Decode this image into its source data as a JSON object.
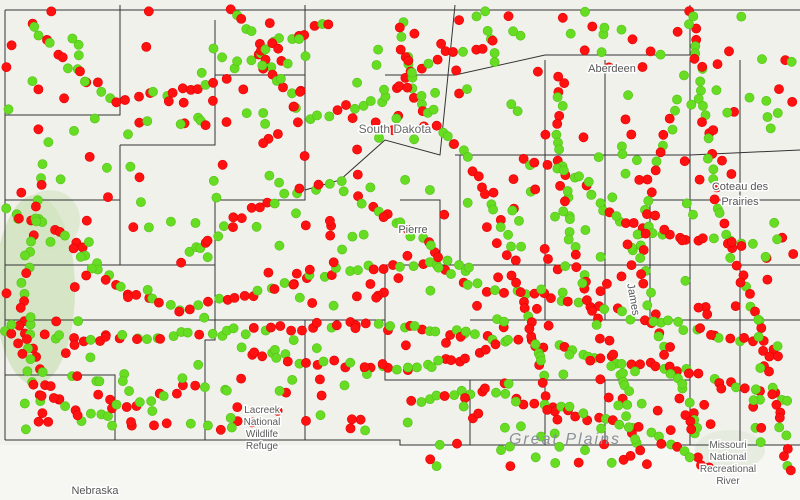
{
  "map": {
    "state_label": "South Dakota",
    "cities": [
      "Aberdeen",
      "Pierre"
    ],
    "neighbor_label": "Nebraska",
    "region_label": "Great Plains",
    "upland_label": [
      "Coteau des",
      "Prairies"
    ],
    "river_label": "James",
    "refuge_label": [
      "Lacreek",
      "National",
      "Wildlife",
      "Refuge"
    ],
    "recreation_label": [
      "Missouri",
      "National",
      "Recreational",
      "River"
    ]
  }
}
